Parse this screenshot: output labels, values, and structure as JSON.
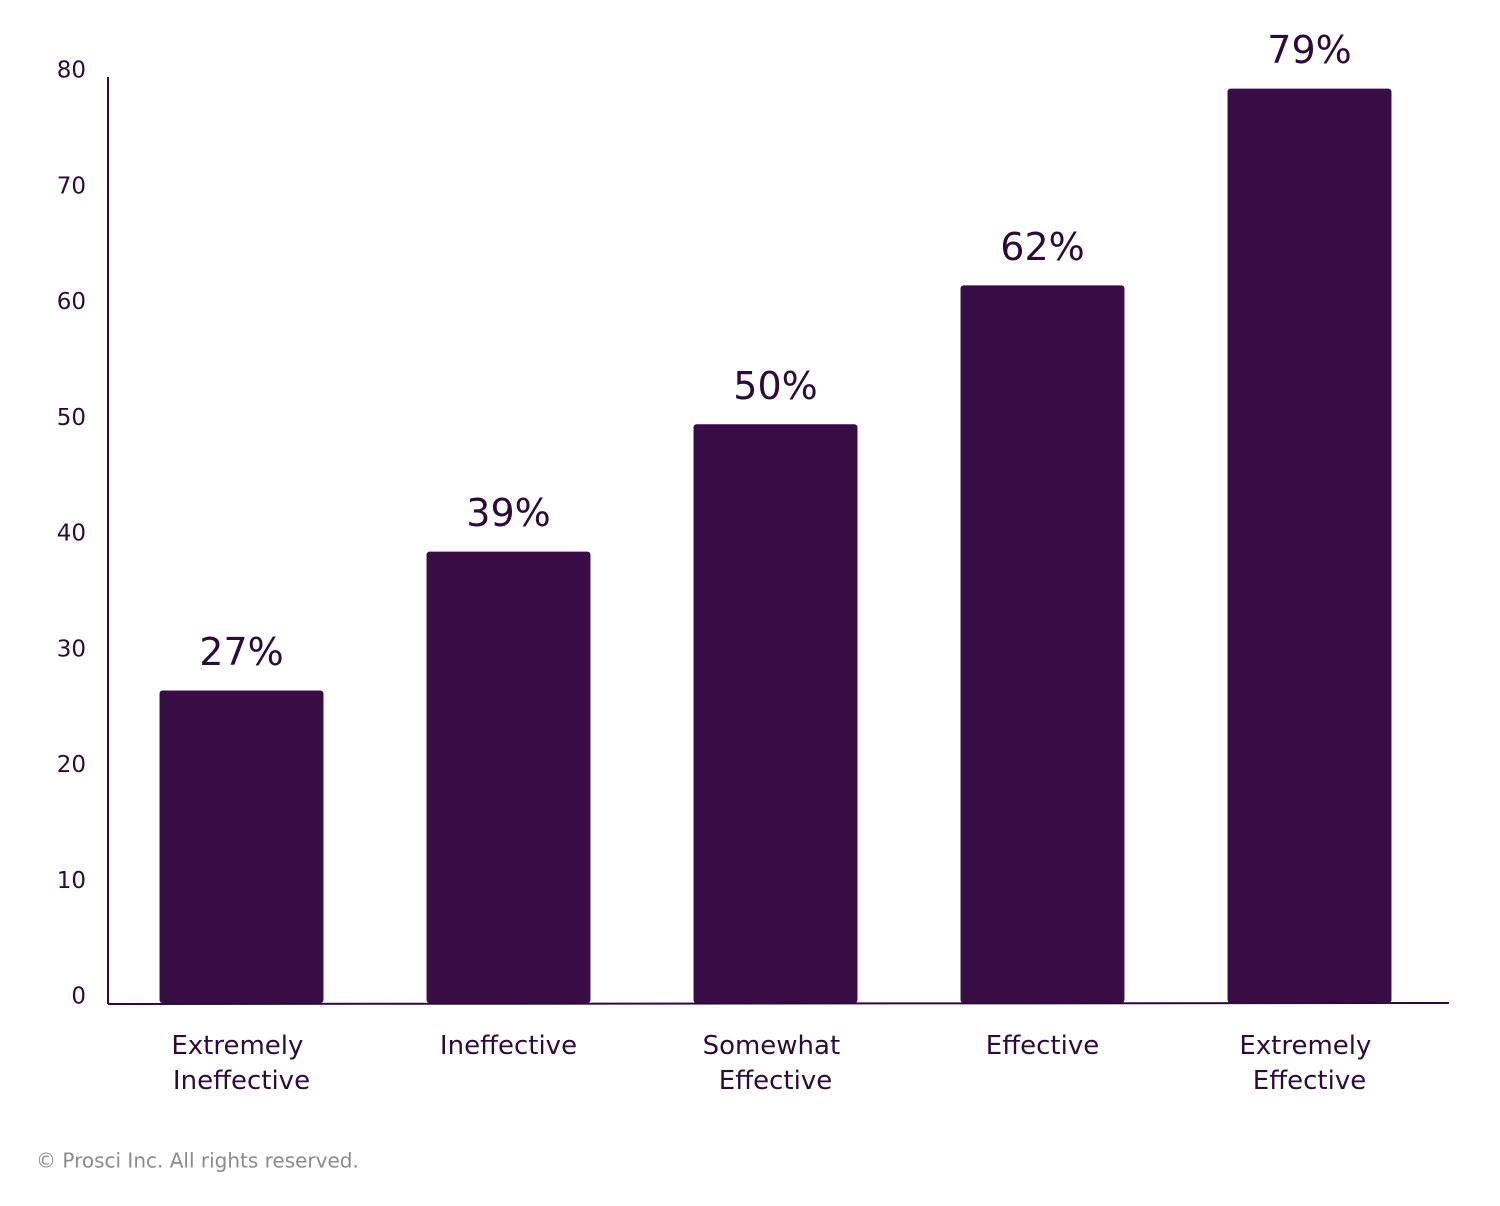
{
  "chart_data": {
    "type": "bar",
    "categories": [
      "Extremely Ineffective",
      "Ineffective",
      "Somewhat Effective",
      "Effective",
      "Extremely Effective"
    ],
    "values": [
      27,
      39,
      50,
      62,
      79
    ],
    "value_labels": [
      "27%",
      "39%",
      "50%",
      "62%",
      "79%"
    ],
    "color": "#380c45",
    "ylim": [
      0,
      80
    ],
    "yticks": [
      0,
      10,
      20,
      30,
      40,
      50,
      60,
      70,
      80
    ],
    "grid": false
  },
  "footer": "© Prosci Inc. All rights reserved."
}
